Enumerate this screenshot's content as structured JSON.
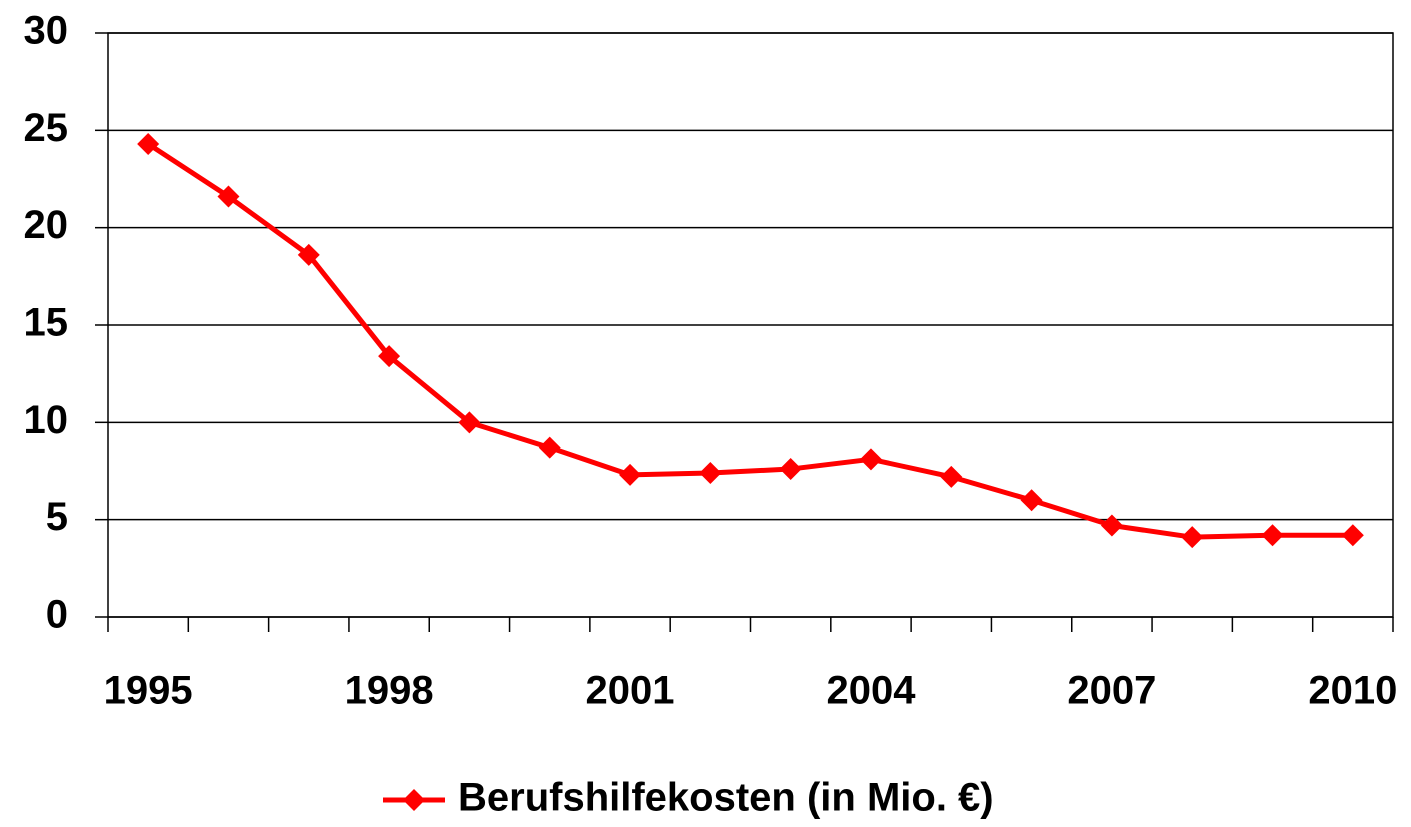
{
  "chart_data": {
    "type": "line",
    "categories": [
      "1995",
      null,
      null,
      "1998",
      null,
      null,
      "2001",
      null,
      null,
      "2004",
      null,
      null,
      "2007",
      null,
      null,
      "2010"
    ],
    "series": [
      {
        "name": "Berufshilfekosten (in Mio. €)",
        "color": "#ff0000",
        "values": [
          24.3,
          21.6,
          18.6,
          13.4,
          10.0,
          8.7,
          7.3,
          7.4,
          7.6,
          8.1,
          7.2,
          6.0,
          4.7,
          4.1,
          4.2,
          4.2
        ]
      }
    ],
    "ylim": [
      0,
      30
    ],
    "yticks": [
      0,
      5,
      10,
      15,
      20,
      25,
      30
    ],
    "grid": true,
    "legend": "bottom"
  }
}
